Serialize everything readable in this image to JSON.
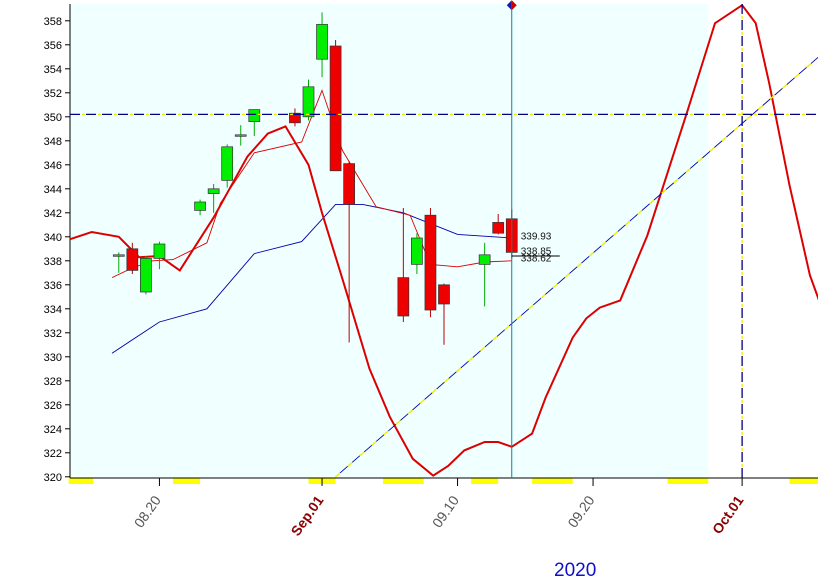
{
  "chart_data": {
    "type": "candlestick",
    "year_label": "2020",
    "y_ticks": [
      320,
      322,
      324,
      326,
      328,
      330,
      332,
      334,
      336,
      338,
      340,
      342,
      344,
      346,
      348,
      350,
      352,
      354,
      356,
      358
    ],
    "ylim": [
      319.9,
      359.4
    ],
    "x_ticks": [
      {
        "label": "08.20",
        "day": 18,
        "bold": false
      },
      {
        "label": "Sep.01",
        "day": 30,
        "bold": true
      },
      {
        "label": "09.10",
        "day": 40,
        "bold": false
      },
      {
        "label": "09.20",
        "day": 50,
        "bold": false
      },
      {
        "label": "Oct.01",
        "day": 61,
        "bold": true
      }
    ],
    "xlim": [
      11.4,
      66.6
    ],
    "shaded_until_day": 58.5,
    "weekend_markers": [
      [
        11.3,
        13.1
      ],
      [
        19.0,
        21.0
      ],
      [
        29.0,
        31.0
      ],
      [
        34.5,
        37.5
      ],
      [
        41.0,
        43.0
      ],
      [
        45.5,
        48.5
      ],
      [
        55.5,
        58.5
      ],
      [
        64.5,
        66.6
      ]
    ],
    "candles": [
      {
        "day": 15,
        "open": 338.5,
        "high": 338.7,
        "low": 337.0,
        "close": 338.5
      },
      {
        "day": 16,
        "open": 339.0,
        "high": 339.5,
        "low": 336.9,
        "close": 337.2
      },
      {
        "day": 17,
        "open": 335.4,
        "high": 338.4,
        "low": 335.2,
        "close": 338.2
      },
      {
        "day": 18,
        "open": 338.2,
        "high": 339.6,
        "low": 337.3,
        "close": 339.4
      },
      {
        "day": 21,
        "open": 342.2,
        "high": 343.1,
        "low": 341.8,
        "close": 342.9
      },
      {
        "day": 22,
        "open": 343.6,
        "high": 344.4,
        "low": 342.0,
        "close": 344.0
      },
      {
        "day": 23,
        "open": 344.7,
        "high": 347.7,
        "low": 344.1,
        "close": 347.5
      },
      {
        "day": 24,
        "open": 348.5,
        "high": 349.3,
        "low": 347.6,
        "close": 348.5
      },
      {
        "day": 25,
        "open": 349.6,
        "high": 350.6,
        "low": 348.4,
        "close": 350.6
      },
      {
        "day": 28,
        "open": 350.3,
        "high": 350.7,
        "low": 349.2,
        "close": 349.5
      },
      {
        "day": 29,
        "open": 350.0,
        "high": 353.1,
        "low": 349.7,
        "close": 352.5
      },
      {
        "day": 30,
        "open": 354.8,
        "high": 358.7,
        "low": 353.3,
        "close": 357.7
      },
      {
        "day": 31,
        "open": 355.9,
        "high": 356.4,
        "low": 345.5,
        "close": 345.5
      },
      {
        "day": 32,
        "open": 346.1,
        "high": 346.3,
        "low": 331.2,
        "close": 342.7
      },
      {
        "day": 36,
        "open": 336.6,
        "high": 342.4,
        "low": 332.9,
        "close": 333.4
      },
      {
        "day": 37,
        "open": 337.7,
        "high": 340.3,
        "low": 336.9,
        "close": 339.9
      },
      {
        "day": 38,
        "open": 341.8,
        "high": 342.4,
        "low": 333.3,
        "close": 333.9
      },
      {
        "day": 39,
        "open": 336.0,
        "high": 336.1,
        "low": 331.0,
        "close": 334.4
      },
      {
        "day": 42,
        "open": 337.7,
        "high": 339.5,
        "low": 334.2,
        "close": 338.5
      },
      {
        "day": 43,
        "open": 341.2,
        "high": 341.9,
        "low": 340.2,
        "close": 340.3
      },
      {
        "day": 44,
        "open": 341.5,
        "high": 342.3,
        "low": 338.2,
        "close": 338.7
      }
    ],
    "series": [
      {
        "color": "#0000aa",
        "width": 0.9,
        "points": [
          [
            14.5,
            330.3
          ],
          [
            18,
            332.9
          ],
          [
            21.5,
            334.0
          ],
          [
            25,
            338.6
          ],
          [
            28.5,
            339.6
          ],
          [
            31,
            342.7
          ],
          [
            33,
            342.7
          ],
          [
            36,
            342.0
          ],
          [
            40,
            340.2
          ],
          [
            44,
            339.9
          ]
        ]
      },
      {
        "color": "#dd0000",
        "width": 0.9,
        "points": [
          [
            14.5,
            336.6
          ],
          [
            16,
            337.4
          ],
          [
            17.5,
            338.0
          ],
          [
            19,
            338.1
          ],
          [
            21.5,
            339.5
          ],
          [
            22.5,
            342.8
          ],
          [
            25,
            347.0
          ],
          [
            28.5,
            347.9
          ],
          [
            30,
            352.2
          ],
          [
            31.5,
            347.2
          ],
          [
            34,
            342.5
          ],
          [
            36.5,
            341.8
          ],
          [
            38,
            337.7
          ],
          [
            40,
            337.5
          ],
          [
            42,
            337.9
          ],
          [
            44,
            338.0
          ]
        ]
      },
      {
        "color": "#dd0000",
        "width": 2.0,
        "points": [
          [
            11.4,
            339.8
          ],
          [
            13,
            340.4
          ],
          [
            15,
            340.0
          ],
          [
            16.5,
            338.3
          ],
          [
            18,
            338.4
          ],
          [
            19.5,
            337.2
          ],
          [
            22,
            341.6
          ],
          [
            24.5,
            346.7
          ],
          [
            26,
            348.6
          ],
          [
            27.3,
            349.2
          ],
          [
            29,
            346.0
          ],
          [
            30,
            342.0
          ],
          [
            31.5,
            336.5
          ],
          [
            33.5,
            329.0
          ],
          [
            35,
            325.0
          ],
          [
            36.7,
            321.5
          ],
          [
            38.2,
            320.1
          ],
          [
            39.3,
            320.9
          ],
          [
            40.5,
            322.2
          ],
          [
            42,
            322.9
          ],
          [
            43,
            322.9
          ],
          [
            44,
            322.5
          ],
          [
            45.5,
            323.6
          ],
          [
            46.5,
            326.6
          ],
          [
            48.5,
            331.6
          ],
          [
            49.5,
            333.2
          ],
          [
            50.5,
            334.1
          ],
          [
            52,
            334.7
          ],
          [
            54,
            340.1
          ],
          [
            57,
            350.6
          ],
          [
            59,
            357.8
          ],
          [
            61,
            359.3
          ],
          [
            62,
            357.8
          ],
          [
            63,
            352.8
          ],
          [
            64.5,
            344.3
          ],
          [
            66,
            336.8
          ],
          [
            67,
            333.7
          ],
          [
            68.5,
            333.1
          ]
        ]
      },
      {
        "color": "#0000aa",
        "width": 0.9,
        "points": [
          [
            31,
            320.0
          ],
          [
            69,
            357.3
          ]
        ]
      }
    ],
    "price_labels": [
      "339.93",
      "338.85",
      "338.62"
    ],
    "last_bar_day": 44,
    "horizontal_level": 350.2,
    "forecast_vline_day": 61,
    "cursor_vline_day": 44,
    "cursor_marker_price": 359.3
  }
}
